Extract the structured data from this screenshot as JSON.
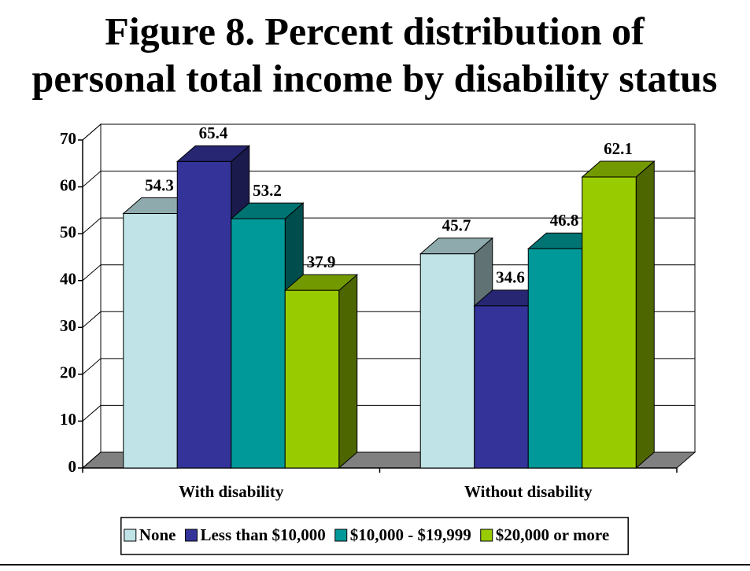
{
  "chart_data": {
    "type": "bar3d",
    "title_lines": [
      "Figure 8. Percent distribution of",
      "personal total income by disability status"
    ],
    "categories": [
      "With disability",
      "Without disability"
    ],
    "series": [
      {
        "name": "None",
        "color": "#bfe3e6",
        "values": [
          54.3,
          45.7
        ]
      },
      {
        "name": "Less than $10,000",
        "color": "#333399",
        "values": [
          65.4,
          34.6
        ]
      },
      {
        "name": "$10,000 - $19,999",
        "color": "#009999",
        "values": [
          53.2,
          46.8
        ]
      },
      {
        "name": "$20,000 or more",
        "color": "#99cc00",
        "values": [
          37.9,
          62.1
        ]
      }
    ],
    "ylim": [
      0,
      70
    ],
    "yticks": [
      0,
      10,
      20,
      30,
      40,
      50,
      60,
      70
    ],
    "grid": true,
    "legend": "bottom"
  }
}
